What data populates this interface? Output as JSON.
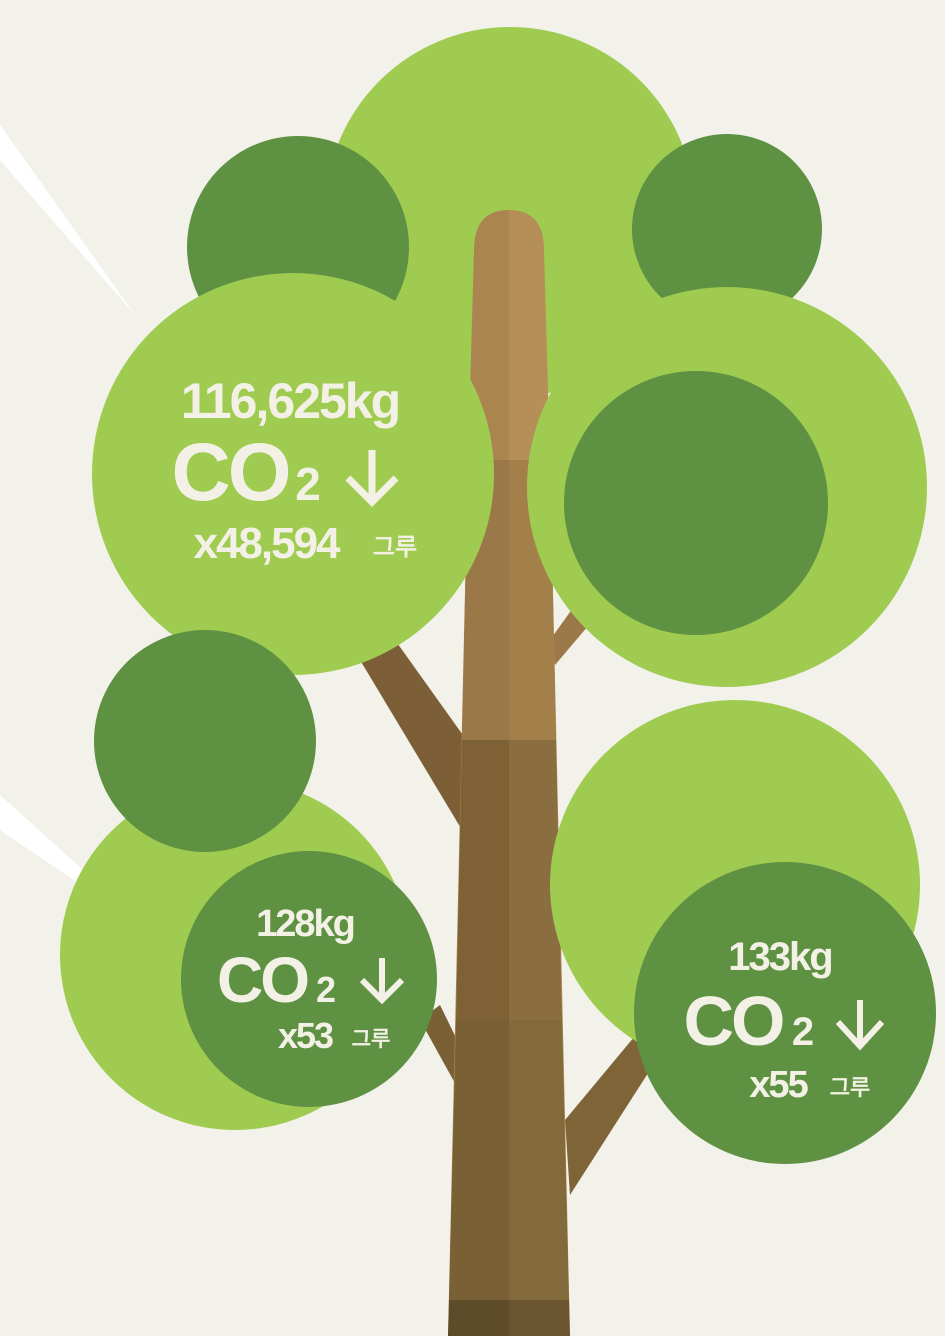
{
  "bubbles": [
    {
      "amount": "116,625kg",
      "co": "CO",
      "sub": "2",
      "count": "x48,594",
      "unit": "그루"
    },
    {
      "amount": "128kg",
      "co": "CO",
      "sub": "2",
      "count": "x53",
      "unit": "그루"
    },
    {
      "amount": "133kg",
      "co": "CO",
      "sub": "2",
      "count": "x55",
      "unit": "그루"
    }
  ]
}
